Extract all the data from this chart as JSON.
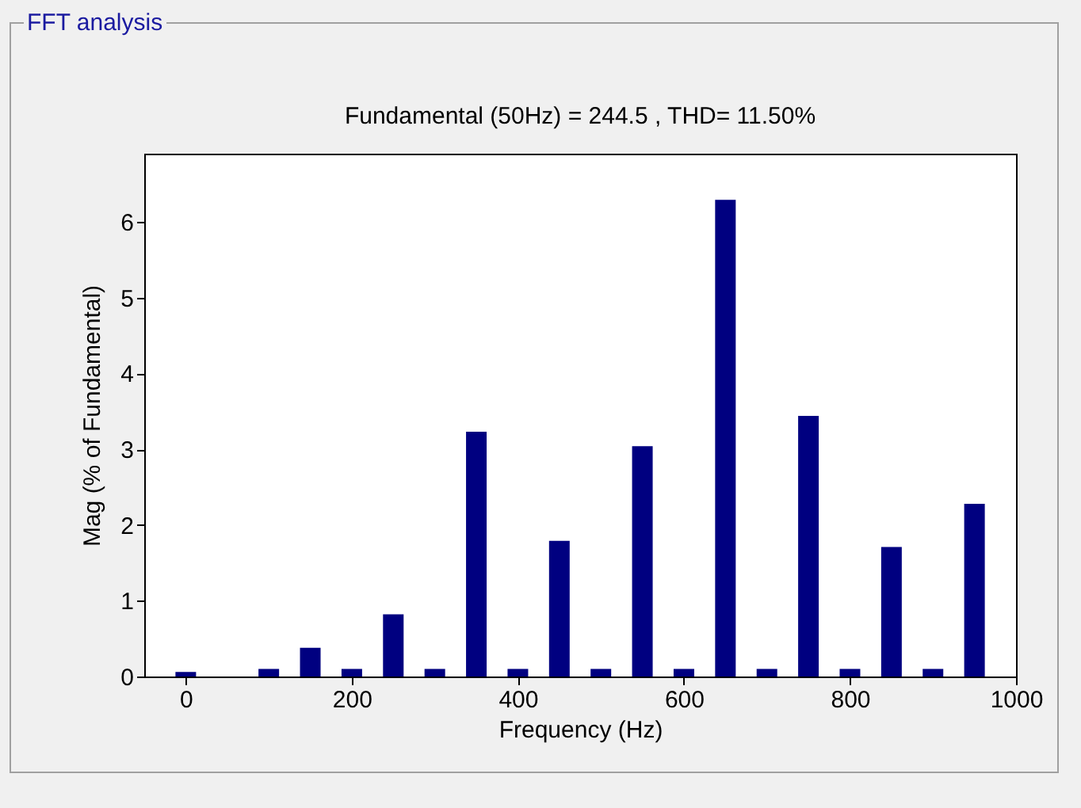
{
  "chart_data": {
    "type": "bar",
    "title": "FFT analysis",
    "subtitle": "Fundamental (50Hz) = 244.5 , THD= 11.50%",
    "xlabel": "Frequency (Hz)",
    "ylabel": "Mag (% of Fundamental)",
    "x": [
      0,
      50,
      100,
      150,
      200,
      250,
      300,
      350,
      400,
      450,
      500,
      550,
      600,
      650,
      700,
      750,
      800,
      850,
      900,
      950
    ],
    "values": [
      0.06,
      null,
      0.1,
      0.38,
      0.1,
      0.82,
      0.1,
      3.23,
      0.1,
      1.79,
      0.1,
      3.04,
      0.1,
      6.29,
      0.1,
      3.44,
      0.1,
      1.71,
      0.1,
      2.28
    ],
    "color": "#000080",
    "xlim": [
      -50,
      1000
    ],
    "xticks": [
      0,
      200,
      400,
      600,
      800,
      1000
    ],
    "ylim": [
      0,
      6.9
    ],
    "yticks": [
      0,
      1,
      2,
      3,
      4,
      5,
      6
    ],
    "grid": false
  }
}
